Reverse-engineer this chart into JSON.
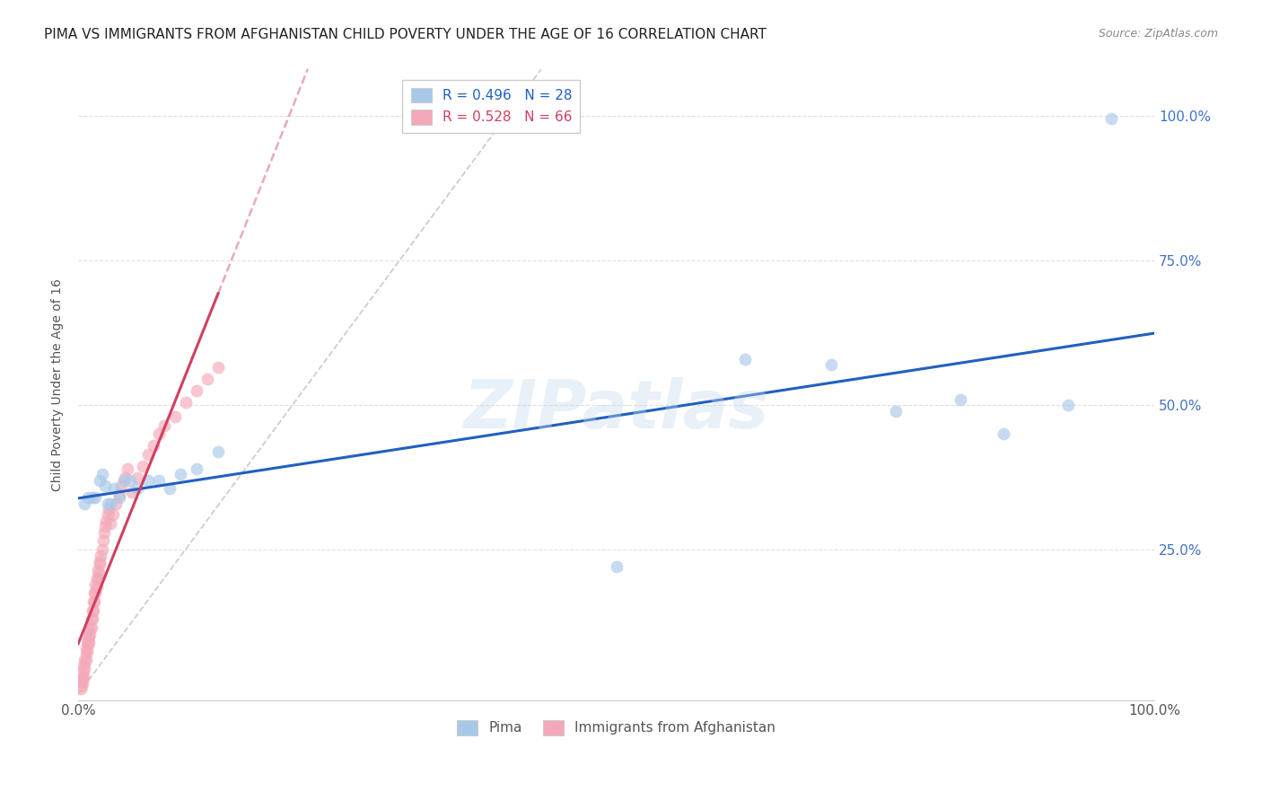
{
  "title": "PIMA VS IMMIGRANTS FROM AFGHANISTAN CHILD POVERTY UNDER THE AGE OF 16 CORRELATION CHART",
  "source": "Source: ZipAtlas.com",
  "ylabel": "Child Poverty Under the Age of 16",
  "watermark": "ZIPatlas",
  "legend1_r": "R = 0.496",
  "legend1_n": "N = 28",
  "legend2_r": "R = 0.528",
  "legend2_n": "N = 66",
  "pima_color": "#a8c8e8",
  "afghan_color": "#f4a8b8",
  "pima_line_color": "#2060c0",
  "afghan_line_color": "#d04060",
  "grid_color": "#e0e0e0",
  "pima_x": [
    0.006,
    0.009,
    0.013,
    0.016,
    0.02,
    0.022,
    0.025,
    0.027,
    0.03,
    0.033,
    0.038,
    0.042,
    0.048,
    0.055,
    0.065,
    0.075,
    0.085,
    0.095,
    0.11,
    0.13,
    0.5,
    0.62,
    0.7,
    0.76,
    0.82,
    0.86,
    0.92,
    0.96
  ],
  "pima_y": [
    0.33,
    0.34,
    0.34,
    0.34,
    0.37,
    0.38,
    0.36,
    0.33,
    0.33,
    0.355,
    0.34,
    0.37,
    0.37,
    0.355,
    0.37,
    0.37,
    0.355,
    0.38,
    0.39,
    0.42,
    0.22,
    0.58,
    0.57,
    0.49,
    0.51,
    0.45,
    0.5,
    0.995
  ],
  "afghan_x": [
    0.002,
    0.003,
    0.003,
    0.004,
    0.004,
    0.005,
    0.005,
    0.005,
    0.006,
    0.006,
    0.007,
    0.007,
    0.007,
    0.008,
    0.008,
    0.009,
    0.009,
    0.01,
    0.01,
    0.01,
    0.011,
    0.011,
    0.012,
    0.012,
    0.013,
    0.013,
    0.014,
    0.014,
    0.015,
    0.015,
    0.016,
    0.016,
    0.017,
    0.017,
    0.018,
    0.018,
    0.019,
    0.02,
    0.02,
    0.021,
    0.022,
    0.023,
    0.024,
    0.025,
    0.026,
    0.027,
    0.028,
    0.03,
    0.032,
    0.035,
    0.038,
    0.04,
    0.043,
    0.046,
    0.05,
    0.055,
    0.06,
    0.065,
    0.07,
    0.075,
    0.08,
    0.09,
    0.1,
    0.11,
    0.12,
    0.13
  ],
  "afghan_y": [
    0.01,
    0.015,
    0.025,
    0.02,
    0.03,
    0.03,
    0.04,
    0.05,
    0.045,
    0.06,
    0.06,
    0.07,
    0.08,
    0.075,
    0.09,
    0.085,
    0.095,
    0.09,
    0.1,
    0.11,
    0.105,
    0.115,
    0.115,
    0.13,
    0.13,
    0.145,
    0.145,
    0.16,
    0.16,
    0.175,
    0.175,
    0.19,
    0.185,
    0.2,
    0.2,
    0.215,
    0.21,
    0.225,
    0.23,
    0.24,
    0.25,
    0.265,
    0.28,
    0.29,
    0.3,
    0.31,
    0.32,
    0.295,
    0.31,
    0.33,
    0.345,
    0.36,
    0.375,
    0.39,
    0.35,
    0.375,
    0.395,
    0.415,
    0.43,
    0.45,
    0.465,
    0.48,
    0.505,
    0.525,
    0.545,
    0.565
  ],
  "xlim": [
    0,
    1.0
  ],
  "ylim": [
    -0.01,
    1.08
  ],
  "ytick_positions": [
    0.25,
    0.5,
    0.75,
    1.0
  ],
  "ytick_labels": [
    "25.0%",
    "50.0%",
    "75.0%",
    "100.0%"
  ],
  "xtick_positions": [
    0.0,
    1.0
  ],
  "xtick_labels": [
    "0.0%",
    "100.0%"
  ],
  "dot_size": 100,
  "dot_alpha": 0.65,
  "line_width": 2.2,
  "title_fontsize": 11,
  "legend_fontsize": 11,
  "tick_fontsize": 11,
  "ylabel_fontsize": 10
}
